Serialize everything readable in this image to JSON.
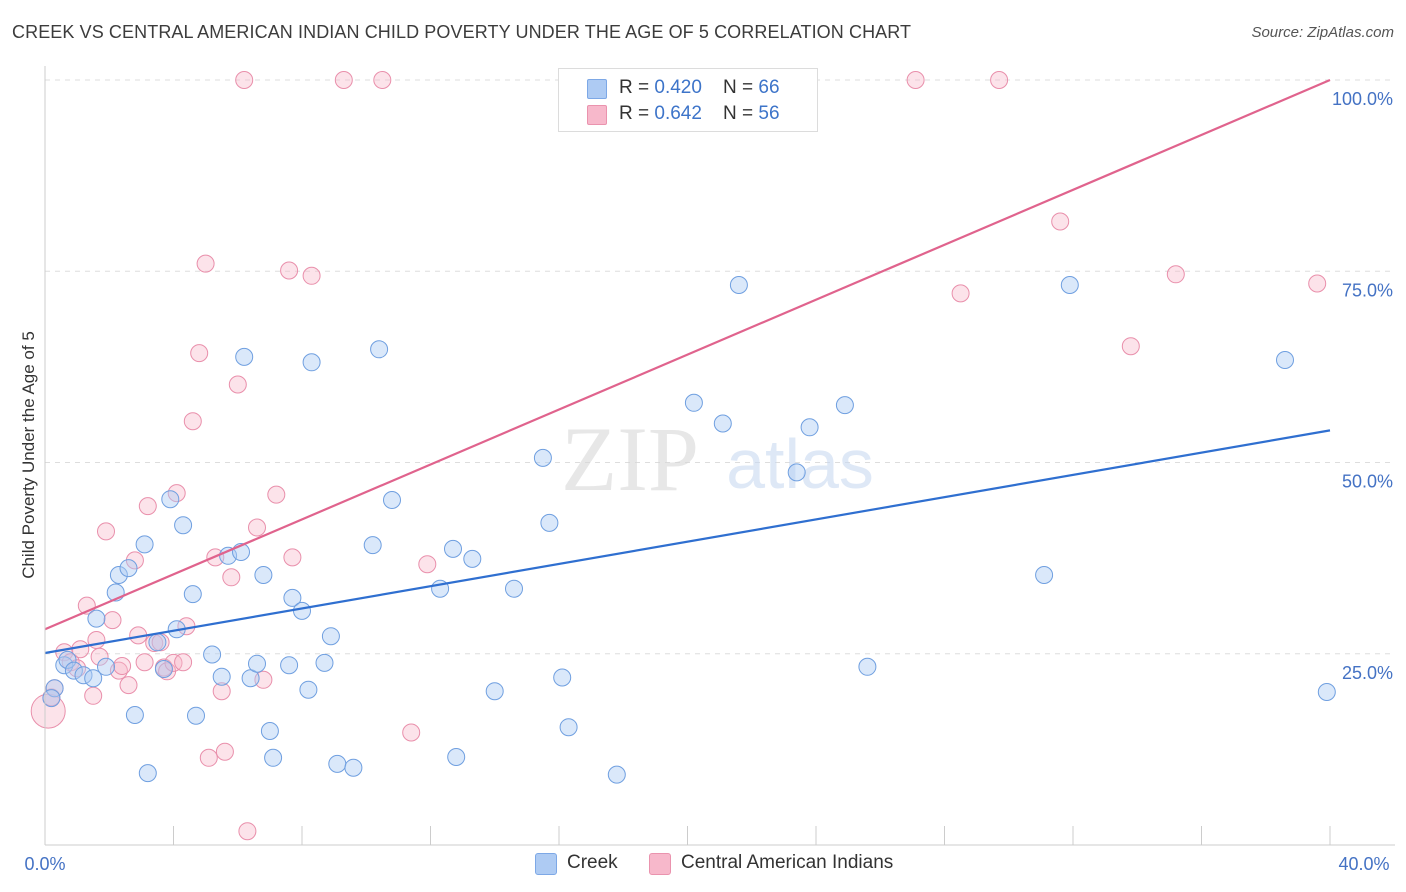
{
  "title": "CREEK VS CENTRAL AMERICAN INDIAN CHILD POVERTY UNDER THE AGE OF 5 CORRELATION CHART",
  "source": "Source: ZipAtlas.com",
  "watermark": {
    "zip": "ZIP",
    "atlas": "atlas"
  },
  "legend": {
    "rows": [
      {
        "r_label": "R = ",
        "r_value": "0.420",
        "n_label": "N = ",
        "n_value": "66",
        "color": "#aecbf3"
      },
      {
        "r_label": "R = ",
        "r_value": "0.642",
        "n_label": "N = ",
        "n_value": "56",
        "color": "#f7b8cb"
      }
    ]
  },
  "bottom_legend": [
    {
      "label": "Creek",
      "color": "#aecbf3"
    },
    {
      "label": "Central American Indians",
      "color": "#f7b8cb"
    }
  ],
  "colors": {
    "creek_fill": "rgba(174,203,243,0.45)",
    "creek_stroke": "#6f9fe0",
    "creek_line": "#2f6fd0",
    "cai_fill": "rgba(247,184,203,0.40)",
    "cai_stroke": "#e98fab",
    "cai_line": "#e0638d",
    "axis_label": "#4472c4",
    "grid": "#dddddd"
  },
  "chart_data": {
    "type": "scatter",
    "title": "CREEK VS CENTRAL AMERICAN INDIAN CHILD POVERTY UNDER THE AGE OF 5 CORRELATION CHART",
    "xlabel": "",
    "ylabel": "Child Poverty Under the Age of 5",
    "xlim": [
      0,
      40
    ],
    "ylim": [
      0,
      100
    ],
    "x_tick_labels": [
      "0.0%",
      "40.0%"
    ],
    "y_tick_labels": [
      "25.0%",
      "50.0%",
      "75.0%",
      "100.0%"
    ],
    "y_ticks": [
      25,
      50,
      75,
      100
    ],
    "grid": true,
    "legend_position": "top-center",
    "series": [
      {
        "name": "Creek",
        "r": 0.42,
        "n": 66,
        "trend": {
          "x": [
            0,
            40
          ],
          "y": [
            25.1,
            54.2
          ]
        },
        "points": [
          [
            0.3,
            20.5
          ],
          [
            0.6,
            23.5
          ],
          [
            0.7,
            24.2
          ],
          [
            0.9,
            22.8
          ],
          [
            1.2,
            22.2
          ],
          [
            1.5,
            21.8
          ],
          [
            1.6,
            29.6
          ],
          [
            1.9,
            23.3
          ],
          [
            2.2,
            33.0
          ],
          [
            2.3,
            35.3
          ],
          [
            2.6,
            36.2
          ],
          [
            2.8,
            17.0
          ],
          [
            3.1,
            39.3
          ],
          [
            3.2,
            9.4
          ],
          [
            3.5,
            26.5
          ],
          [
            3.7,
            23.0
          ],
          [
            3.9,
            45.2
          ],
          [
            4.1,
            28.2
          ],
          [
            4.3,
            41.8
          ],
          [
            4.6,
            32.8
          ],
          [
            4.7,
            16.9
          ],
          [
            5.2,
            24.9
          ],
          [
            5.5,
            22.0
          ],
          [
            5.7,
            37.8
          ],
          [
            6.1,
            38.3
          ],
          [
            6.2,
            63.8
          ],
          [
            6.4,
            21.8
          ],
          [
            6.6,
            23.7
          ],
          [
            6.8,
            35.3
          ],
          [
            7.0,
            14.9
          ],
          [
            7.1,
            11.4
          ],
          [
            7.6,
            23.5
          ],
          [
            7.7,
            32.3
          ],
          [
            8.0,
            30.6
          ],
          [
            8.2,
            20.3
          ],
          [
            8.3,
            63.1
          ],
          [
            8.7,
            23.8
          ],
          [
            8.9,
            27.3
          ],
          [
            9.1,
            10.6
          ],
          [
            9.6,
            10.1
          ],
          [
            10.2,
            39.2
          ],
          [
            10.4,
            64.8
          ],
          [
            10.8,
            45.1
          ],
          [
            12.3,
            33.5
          ],
          [
            12.7,
            38.7
          ],
          [
            12.8,
            11.5
          ],
          [
            13.3,
            37.4
          ],
          [
            14.0,
            20.1
          ],
          [
            14.6,
            33.5
          ],
          [
            15.5,
            50.6
          ],
          [
            15.7,
            42.1
          ],
          [
            16.1,
            21.9
          ],
          [
            16.3,
            15.4
          ],
          [
            17.8,
            9.2
          ],
          [
            20.2,
            57.8
          ],
          [
            21.1,
            55.1
          ],
          [
            21.6,
            73.2
          ],
          [
            23.4,
            48.7
          ],
          [
            23.8,
            54.6
          ],
          [
            24.9,
            57.5
          ],
          [
            25.6,
            23.3
          ],
          [
            31.1,
            35.3
          ],
          [
            31.9,
            73.2
          ],
          [
            38.6,
            63.4
          ],
          [
            39.9,
            20.0
          ],
          [
            0.2,
            19.2
          ]
        ]
      },
      {
        "name": "Central American Indians",
        "r": 0.642,
        "n": 56,
        "trend": {
          "x": [
            0,
            40
          ],
          "y": [
            28.2,
            100.0
          ]
        },
        "points": [
          [
            0.1,
            17.5
          ],
          [
            0.2,
            19.3
          ],
          [
            0.3,
            20.5
          ],
          [
            0.6,
            25.2
          ],
          [
            0.8,
            23.9
          ],
          [
            1.1,
            25.6
          ],
          [
            1.3,
            31.3
          ],
          [
            1.5,
            19.5
          ],
          [
            1.6,
            26.8
          ],
          [
            1.7,
            24.6
          ],
          [
            1.9,
            41.0
          ],
          [
            2.1,
            29.4
          ],
          [
            2.3,
            22.8
          ],
          [
            2.4,
            23.4
          ],
          [
            2.6,
            20.9
          ],
          [
            2.8,
            37.2
          ],
          [
            2.9,
            27.4
          ],
          [
            3.1,
            23.9
          ],
          [
            3.2,
            44.3
          ],
          [
            3.4,
            26.4
          ],
          [
            3.7,
            23.2
          ],
          [
            3.8,
            22.7
          ],
          [
            4.0,
            23.8
          ],
          [
            4.1,
            46.0
          ],
          [
            4.3,
            23.9
          ],
          [
            4.4,
            28.6
          ],
          [
            4.6,
            55.4
          ],
          [
            4.8,
            64.3
          ],
          [
            5.0,
            76.0
          ],
          [
            5.1,
            11.4
          ],
          [
            5.3,
            37.6
          ],
          [
            5.5,
            20.1
          ],
          [
            5.6,
            12.2
          ],
          [
            5.8,
            35.0
          ],
          [
            6.0,
            60.2
          ],
          [
            6.2,
            100.0
          ],
          [
            6.3,
            1.8
          ],
          [
            6.6,
            41.5
          ],
          [
            6.8,
            21.6
          ],
          [
            7.2,
            45.8
          ],
          [
            7.6,
            75.1
          ],
          [
            7.7,
            37.6
          ],
          [
            8.3,
            74.4
          ],
          [
            9.3,
            100.0
          ],
          [
            10.5,
            100.0
          ],
          [
            11.4,
            14.7
          ],
          [
            11.9,
            36.7
          ],
          [
            27.1,
            100.0
          ],
          [
            28.5,
            72.1
          ],
          [
            29.7,
            100.0
          ],
          [
            31.6,
            81.5
          ],
          [
            33.8,
            65.2
          ],
          [
            35.2,
            74.6
          ],
          [
            39.6,
            73.4
          ],
          [
            1.0,
            23.1
          ],
          [
            3.6,
            26.5
          ]
        ]
      }
    ]
  }
}
